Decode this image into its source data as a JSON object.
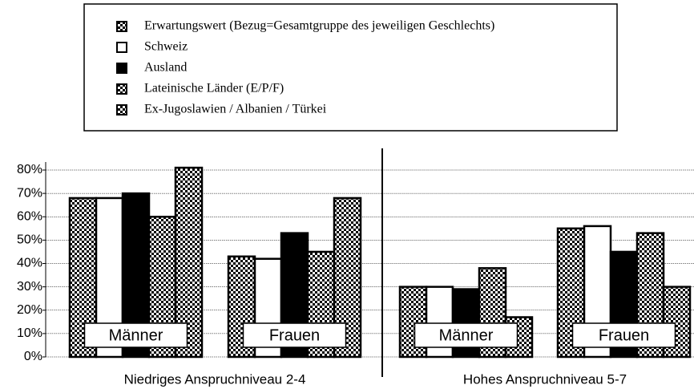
{
  "chart_data": {
    "type": "bar",
    "categories": [
      "Männer",
      "Frauen",
      "Männer",
      "Frauen"
    ],
    "groups": [
      "Niedriges Anspruchniveau 2-4",
      "Hohes Anspruchniveau 5-7"
    ],
    "series": [
      {
        "name": "Erwartungswert (Bezug=Gesamtgruppe des jeweiligen Geschlechts)",
        "color": "#000000",
        "pattern": "checker",
        "values": [
          68,
          43,
          30,
          55
        ]
      },
      {
        "name": "Schweiz",
        "color": "#ffffff",
        "values": [
          68,
          42,
          30,
          56
        ]
      },
      {
        "name": "Ausland",
        "color": "#000000",
        "values": [
          70,
          53,
          29,
          45
        ]
      },
      {
        "name": "Lateinische Länder (E/P/F)",
        "color": "#000000",
        "pattern": "checker",
        "values": [
          60,
          45,
          38,
          53
        ]
      },
      {
        "name": "Ex-Jugoslawien / Albanien / Türkei",
        "color": "#000000",
        "pattern": "checker",
        "values": [
          81,
          68,
          17,
          30
        ]
      }
    ],
    "ylim": [
      0,
      80
    ],
    "yticks": [
      {
        "value": 0,
        "label": "0%"
      },
      {
        "value": 10,
        "label": "10%"
      },
      {
        "value": 20,
        "label": "20%"
      },
      {
        "value": 30,
        "label": "30%"
      },
      {
        "value": 40,
        "label": "40%"
      },
      {
        "value": 50,
        "label": "50%"
      },
      {
        "value": 60,
        "label": "60%"
      },
      {
        "value": 70,
        "label": "70%"
      },
      {
        "value": 80,
        "label": "80%"
      }
    ],
    "grid": true
  }
}
